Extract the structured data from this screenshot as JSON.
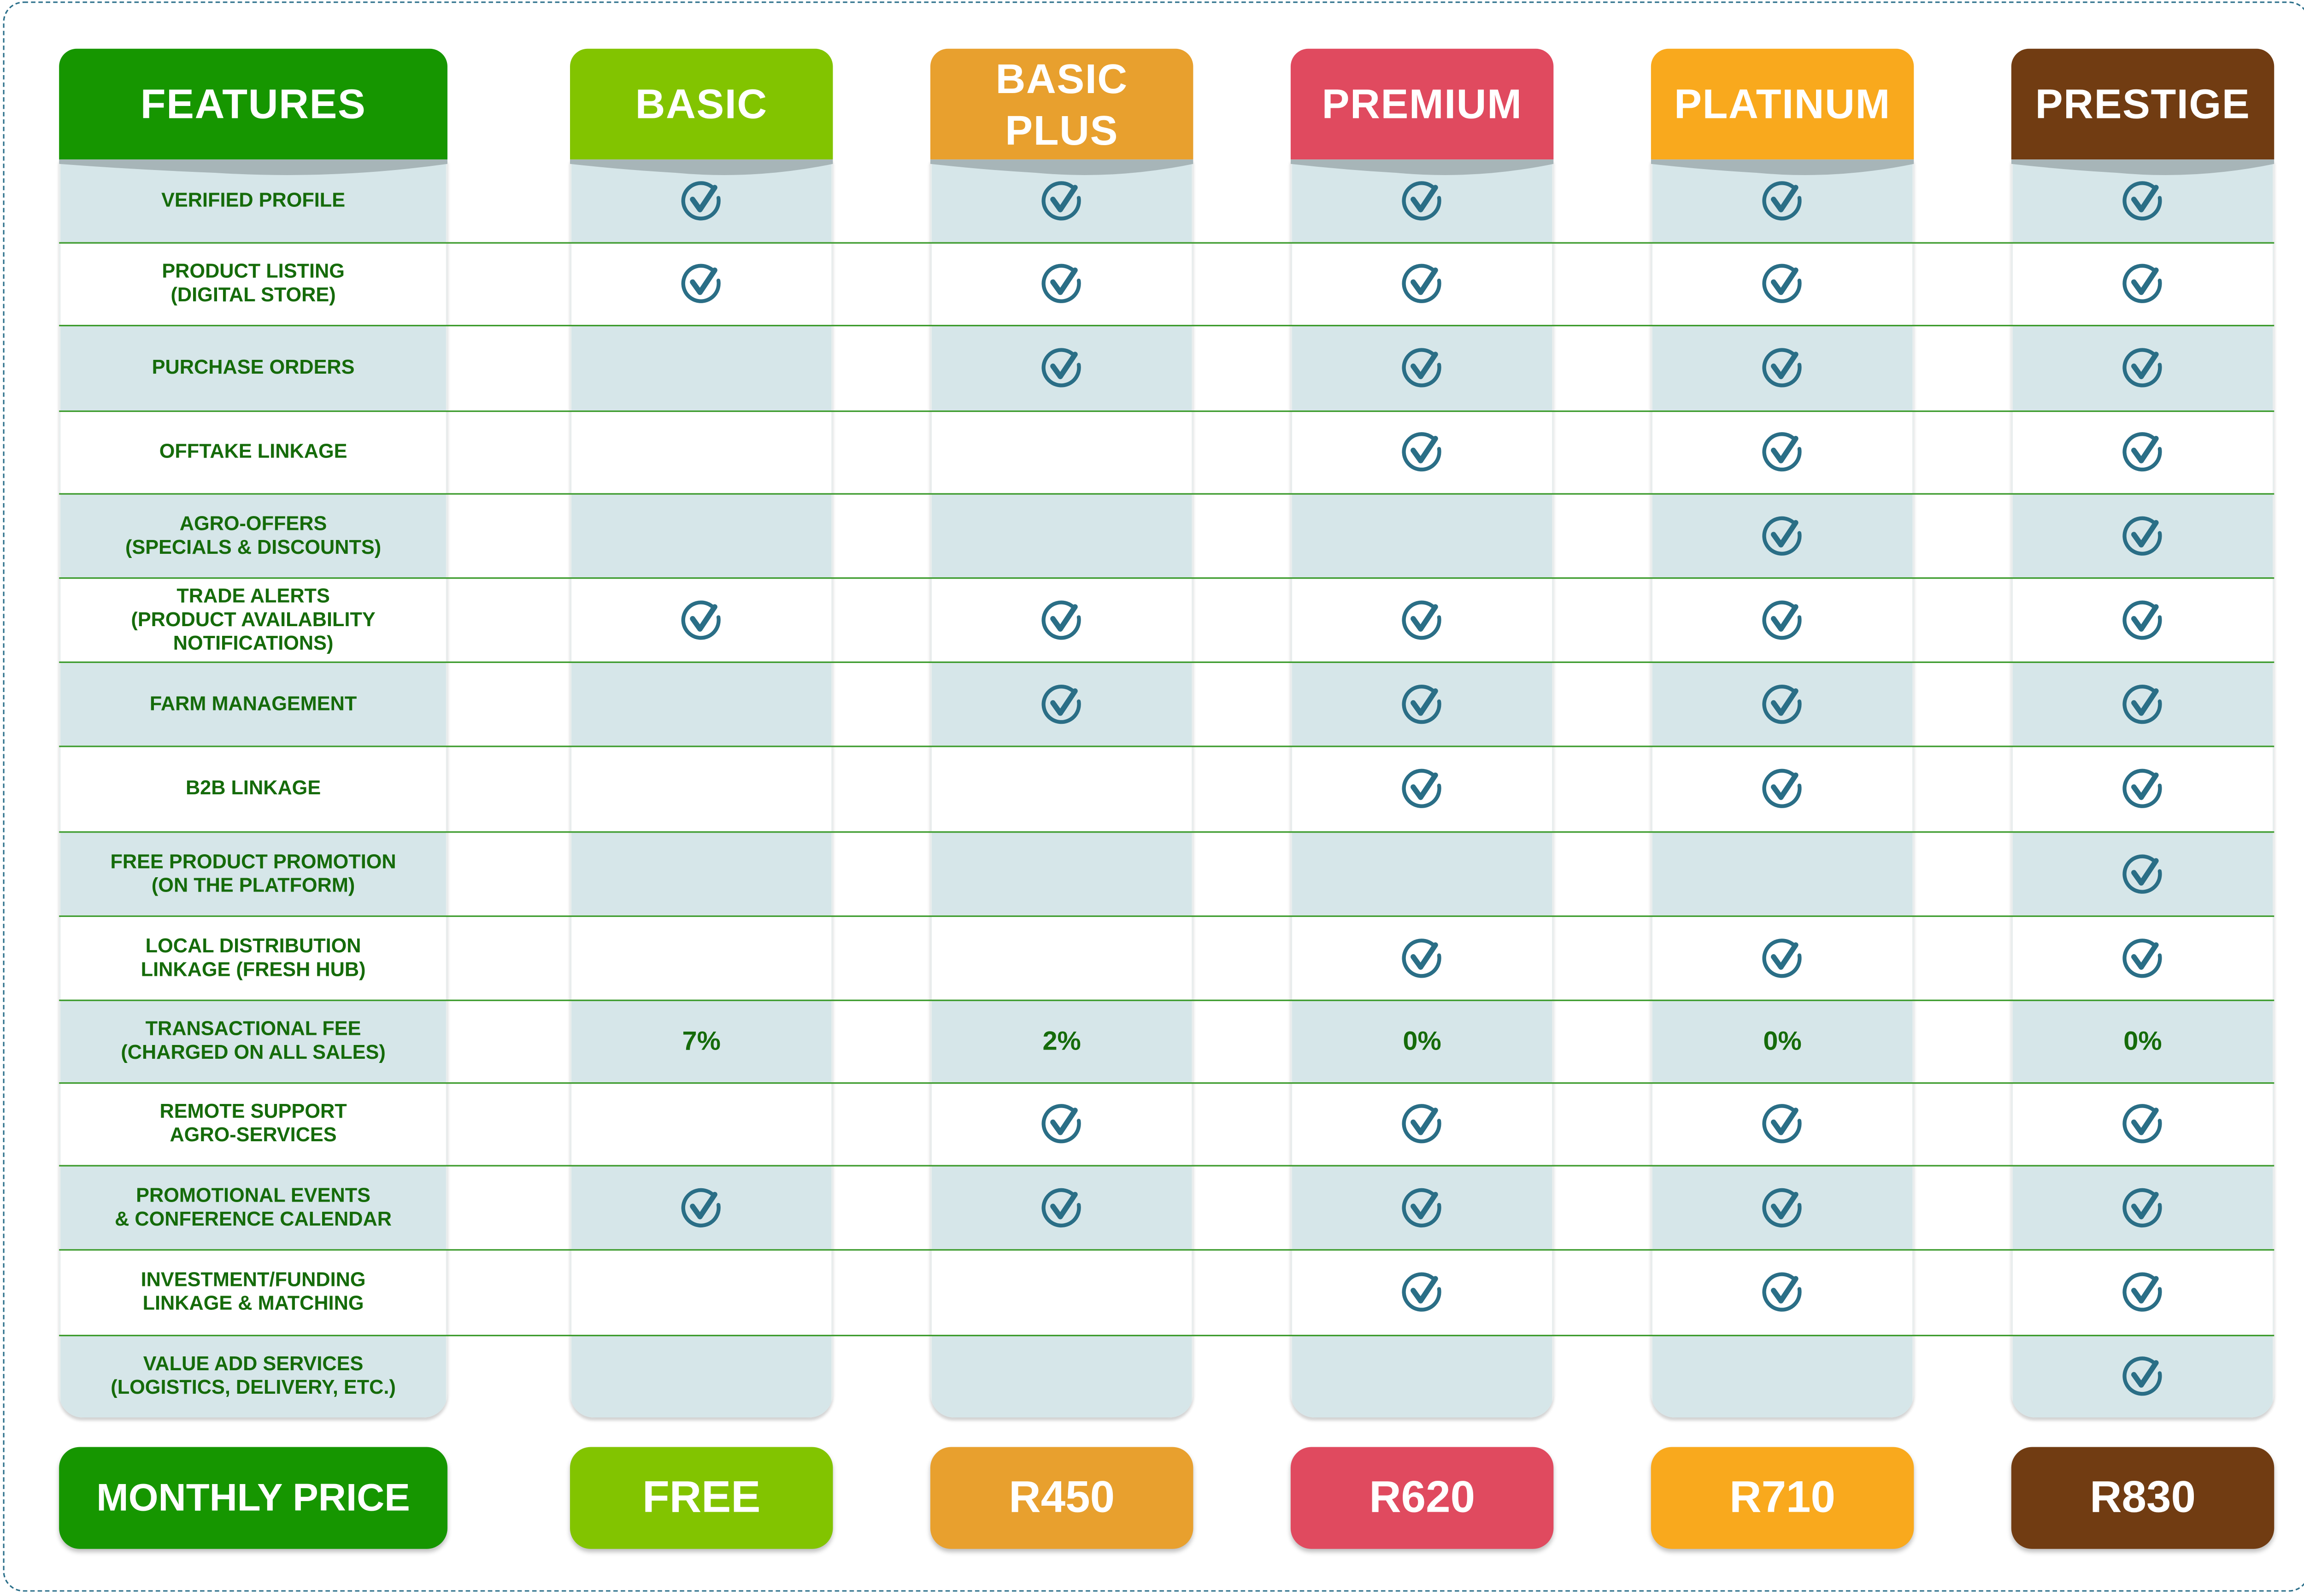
{
  "colors": {
    "features": "#169600",
    "basic": "#82c400",
    "basic_plus": "#e8a02e",
    "premium": "#e04a5f",
    "platinum": "#f9a91d",
    "prestige": "#713c12",
    "text": "#156b0a",
    "check": "#2a6e86",
    "row_alt": "#d6e6e9"
  },
  "features_header": "FEATURES",
  "price_label": "MONTHLY PRICE",
  "plans": [
    {
      "name": "BASIC",
      "price": "FREE",
      "color": "#82c400"
    },
    {
      "name": "BASIC PLUS",
      "price": "R450",
      "color": "#e8a02e"
    },
    {
      "name": "PREMIUM",
      "price": "R620",
      "color": "#e04a5f"
    },
    {
      "name": "PLATINUM",
      "price": "R710",
      "color": "#f9a91d"
    },
    {
      "name": "PRESTIGE",
      "price": "R830",
      "color": "#713c12"
    }
  ],
  "features": [
    {
      "label": "VERIFIED PROFILE",
      "values": [
        true,
        true,
        true,
        true,
        true
      ]
    },
    {
      "label": "PRODUCT LISTING\n(DIGITAL STORE)",
      "values": [
        true,
        true,
        true,
        true,
        true
      ]
    },
    {
      "label": "PURCHASE ORDERS",
      "values": [
        false,
        true,
        true,
        true,
        true
      ]
    },
    {
      "label": "OFFTAKE LINKAGE",
      "values": [
        false,
        false,
        true,
        true,
        true
      ]
    },
    {
      "label": "AGRO-OFFERS\n(SPECIALS & DISCOUNTS)",
      "values": [
        false,
        false,
        false,
        true,
        true
      ]
    },
    {
      "label": "TRADE ALERTS\n(PRODUCT AVAILABILITY\nNOTIFICATIONS)",
      "values": [
        true,
        true,
        true,
        true,
        true
      ]
    },
    {
      "label": "FARM MANAGEMENT",
      "values": [
        false,
        true,
        true,
        true,
        true
      ]
    },
    {
      "label": "B2B LINKAGE",
      "values": [
        false,
        false,
        true,
        true,
        true
      ]
    },
    {
      "label": "FREE PRODUCT PROMOTION\n(ON THE PLATFORM)",
      "values": [
        false,
        false,
        false,
        false,
        true
      ]
    },
    {
      "label": "LOCAL DISTRIBUTION\nLINKAGE (FRESH HUB)",
      "values": [
        false,
        false,
        true,
        true,
        true
      ]
    },
    {
      "label": "TRANSACTIONAL FEE\n(CHARGED ON ALL SALES)",
      "values": [
        "7%",
        "2%",
        "0%",
        "0%",
        "0%"
      ]
    },
    {
      "label": "REMOTE SUPPORT\nAGRO-SERVICES",
      "values": [
        false,
        true,
        true,
        true,
        true
      ]
    },
    {
      "label": "PROMOTIONAL EVENTS\n& CONFERENCE CALENDAR",
      "values": [
        true,
        true,
        true,
        true,
        true
      ]
    },
    {
      "label": "INVESTMENT/FUNDING\nLINKAGE & MATCHING",
      "values": [
        false,
        false,
        true,
        true,
        true
      ]
    },
    {
      "label": "VALUE ADD SERVICES\n(LOGISTICS, DELIVERY, ETC.)",
      "values": [
        false,
        false,
        false,
        false,
        true
      ]
    }
  ]
}
